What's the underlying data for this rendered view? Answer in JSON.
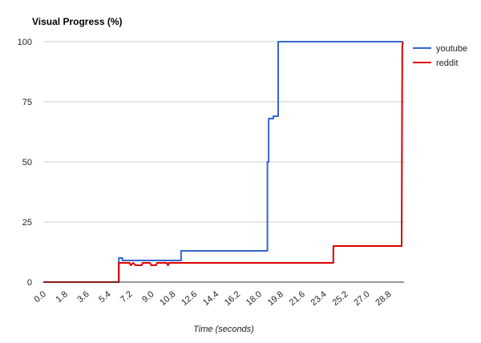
{
  "chart_data": {
    "type": "line",
    "title": "Visual Progress (%)",
    "xlabel": "Time (seconds)",
    "ylabel": "",
    "xlim": [
      0,
      30.1
    ],
    "ylim": [
      0,
      100
    ],
    "y_ticks": [
      "0",
      "25",
      "50",
      "75",
      "100"
    ],
    "x_ticks": [
      "0.0",
      "1.8",
      "3.6",
      "5.4",
      "7.2",
      "9.0",
      "10.8",
      "12.6",
      "14.4",
      "16.2",
      "18.0",
      "19.8",
      "21.6",
      "23.4",
      "25.2",
      "27.0",
      "28.8"
    ],
    "grid": true,
    "legend_position": "right",
    "series": [
      {
        "name": "youtube",
        "color": "#3366cc",
        "points": [
          [
            0,
            0
          ],
          [
            6.3,
            0
          ],
          [
            6.3,
            10
          ],
          [
            6.6,
            10
          ],
          [
            6.6,
            9
          ],
          [
            11.5,
            9
          ],
          [
            11.5,
            13
          ],
          [
            18.7,
            13
          ],
          [
            18.7,
            50
          ],
          [
            18.8,
            50
          ],
          [
            18.8,
            68
          ],
          [
            19.2,
            68
          ],
          [
            19.2,
            69
          ],
          [
            19.6,
            69
          ],
          [
            19.6,
            100
          ],
          [
            30.0,
            100
          ]
        ]
      },
      {
        "name": "reddit",
        "color": "#dc0000",
        "points": [
          [
            0,
            0
          ],
          [
            6.3,
            0
          ],
          [
            6.3,
            8
          ],
          [
            7.2,
            8
          ],
          [
            7.3,
            7
          ],
          [
            7.5,
            8
          ],
          [
            7.7,
            7
          ],
          [
            8.2,
            7
          ],
          [
            8.3,
            8
          ],
          [
            8.9,
            8
          ],
          [
            9.0,
            7
          ],
          [
            9.4,
            7
          ],
          [
            9.5,
            8
          ],
          [
            10.3,
            8
          ],
          [
            10.4,
            7
          ],
          [
            10.5,
            8
          ],
          [
            24.2,
            8
          ],
          [
            24.2,
            15
          ],
          [
            29.9,
            15
          ],
          [
            29.95,
            98
          ],
          [
            30.0,
            100
          ]
        ]
      }
    ]
  }
}
